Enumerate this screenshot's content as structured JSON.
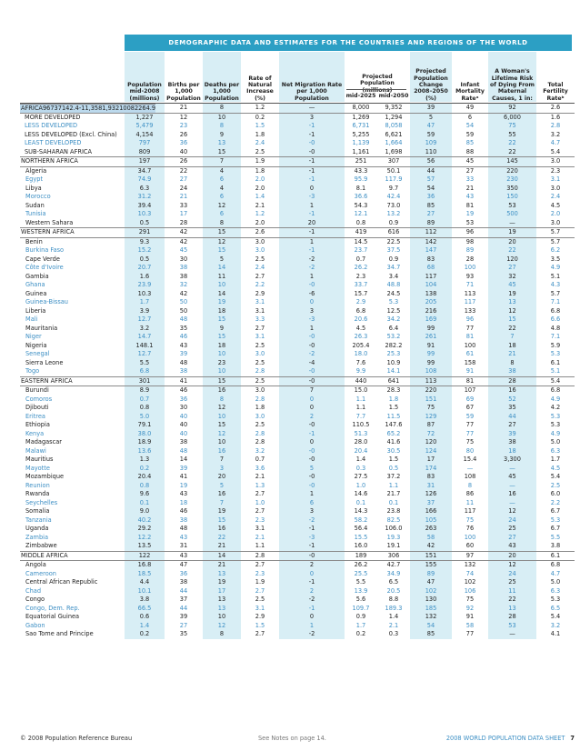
{
  "title": "DEMOGRAPHIC DATA AND ESTIMATES FOR THE COUNTRIES AND REGIONS OF THE WORLD",
  "headers": {
    "population": "Population mid-2008 (millions)",
    "births": "Births per 1,000 Population",
    "deaths": "Deaths per 1,000 Population",
    "natural_increase": "Rate of Natural Increase (%)",
    "net_migration": "Net Migration Rate per 1,000 Population",
    "projected_population": "Projected Population (millions)",
    "mid2025": "mid-2025",
    "mid2050": "mid-2050",
    "projected_change": "Projected Population Change 2008–2050 (%)",
    "infant_mortality": "Infant Mortality Rateᵃ",
    "maternal_risk": "A Woman's Lifetime Risk of Dying From Maternal Causes, 1 in:",
    "fertility": "Total Fertility Rateᵇ"
  },
  "rows": [
    {
      "name": "WORLD",
      "kind": "region",
      "style": "first",
      "v": [
        "6,705",
        "21",
        "8",
        "1.2",
        "—",
        "8,000",
        "9,352",
        "39",
        "49",
        "92",
        "2.6"
      ]
    },
    {
      "name": "MORE DEVELOPED",
      "kind": "sub",
      "style": "",
      "v": [
        "1,227",
        "12",
        "10",
        "0.2",
        "3",
        "1,269",
        "1,294",
        "5",
        "6",
        "6,000",
        "1.6"
      ]
    },
    {
      "name": "LESS DEVELOPED",
      "kind": "sub",
      "style": "blue",
      "v": [
        "5,479",
        "23",
        "8",
        "1.5",
        "-1",
        "6,731",
        "8,058",
        "47",
        "54",
        "75",
        "2.8"
      ]
    },
    {
      "name": "LESS DEVELOPED (Excl. China)",
      "kind": "sub",
      "style": "",
      "v": [
        "4,154",
        "26",
        "9",
        "1.8",
        "-1",
        "5,255",
        "6,621",
        "59",
        "59",
        "55",
        "3.2"
      ]
    },
    {
      "name": "LEAST DEVELOPED",
      "kind": "sub",
      "style": "blue",
      "v": [
        "797",
        "36",
        "13",
        "2.4",
        "-0",
        "1,139",
        "1,664",
        "109",
        "85",
        "22",
        "4.7"
      ]
    },
    {
      "name": "AFRICA",
      "kind": "region",
      "style": "hl",
      "v": [
        "967",
        "37",
        "14",
        "2.4",
        "-1",
        "1,358",
        "1,932",
        "100",
        "82",
        "26",
        "4.9"
      ]
    },
    {
      "name": "SUB-SAHARAN AFRICA",
      "kind": "sub",
      "style": "",
      "v": [
        "809",
        "40",
        "15",
        "2.5",
        "-0",
        "1,161",
        "1,698",
        "110",
        "88",
        "22",
        "5.4"
      ]
    },
    {
      "name": "NORTHERN AFRICA",
      "kind": "region",
      "style": "",
      "v": [
        "197",
        "26",
        "7",
        "1.9",
        "-1",
        "251",
        "307",
        "56",
        "45",
        "145",
        "3.0"
      ]
    },
    {
      "name": "Algeria",
      "kind": "country",
      "style": "",
      "v": [
        "34.7",
        "22",
        "4",
        "1.8",
        "-1",
        "43.3",
        "50.1",
        "44",
        "27",
        "220",
        "2.3"
      ]
    },
    {
      "name": "Egypt",
      "kind": "country",
      "style": "blue",
      "v": [
        "74.9",
        "27",
        "6",
        "2.0",
        "-1",
        "95.9",
        "117.9",
        "57",
        "33",
        "230",
        "3.1"
      ]
    },
    {
      "name": "Libya",
      "kind": "country",
      "style": "",
      "v": [
        "6.3",
        "24",
        "4",
        "2.0",
        "0",
        "8.1",
        "9.7",
        "54",
        "21",
        "350",
        "3.0"
      ]
    },
    {
      "name": "Morocco",
      "kind": "country",
      "style": "blue",
      "v": [
        "31.2",
        "21",
        "6",
        "1.4",
        "-3",
        "36.6",
        "42.4",
        "36",
        "43",
        "150",
        "2.4"
      ]
    },
    {
      "name": "Sudan",
      "kind": "country",
      "style": "",
      "v": [
        "39.4",
        "33",
        "12",
        "2.1",
        "1",
        "54.3",
        "73.0",
        "85",
        "81",
        "53",
        "4.5"
      ]
    },
    {
      "name": "Tunisia",
      "kind": "country",
      "style": "blue",
      "v": [
        "10.3",
        "17",
        "6",
        "1.2",
        "-1",
        "12.1",
        "13.2",
        "27",
        "19",
        "500",
        "2.0"
      ]
    },
    {
      "name": "Western Sahara",
      "kind": "country",
      "style": "",
      "v": [
        "0.5",
        "28",
        "8",
        "2.0",
        "20",
        "0.8",
        "0.9",
        "89",
        "53",
        "—",
        "3.0"
      ]
    },
    {
      "name": "WESTERN AFRICA",
      "kind": "region",
      "style": "",
      "v": [
        "291",
        "42",
        "15",
        "2.6",
        "-1",
        "419",
        "616",
        "112",
        "96",
        "19",
        "5.7"
      ]
    },
    {
      "name": "Benin",
      "kind": "country",
      "style": "",
      "v": [
        "9.3",
        "42",
        "12",
        "3.0",
        "1",
        "14.5",
        "22.5",
        "142",
        "98",
        "20",
        "5.7"
      ]
    },
    {
      "name": "Burkina Faso",
      "kind": "country",
      "style": "blue",
      "v": [
        "15.2",
        "45",
        "15",
        "3.0",
        "-1",
        "23.7",
        "37.5",
        "147",
        "89",
        "22",
        "6.2"
      ]
    },
    {
      "name": "Cape Verde",
      "kind": "country",
      "style": "",
      "v": [
        "0.5",
        "30",
        "5",
        "2.5",
        "-2",
        "0.7",
        "0.9",
        "83",
        "28",
        "120",
        "3.5"
      ]
    },
    {
      "name": "Côte d'Ivoire",
      "kind": "country",
      "style": "blue",
      "v": [
        "20.7",
        "38",
        "14",
        "2.4",
        "-2",
        "26.2",
        "34.7",
        "68",
        "100",
        "27",
        "4.9"
      ]
    },
    {
      "name": "Gambia",
      "kind": "country",
      "style": "",
      "v": [
        "1.6",
        "38",
        "11",
        "2.7",
        "1",
        "2.3",
        "3.4",
        "117",
        "93",
        "32",
        "5.1"
      ]
    },
    {
      "name": "Ghana",
      "kind": "country",
      "style": "blue",
      "v": [
        "23.9",
        "32",
        "10",
        "2.2",
        "-0",
        "33.7",
        "48.8",
        "104",
        "71",
        "45",
        "4.3"
      ]
    },
    {
      "name": "Guinea",
      "kind": "country",
      "style": "",
      "v": [
        "10.3",
        "42",
        "14",
        "2.9",
        "-6",
        "15.7",
        "24.5",
        "138",
        "113",
        "19",
        "5.7"
      ]
    },
    {
      "name": "Guinea-Bissau",
      "kind": "country",
      "style": "blue",
      "v": [
        "1.7",
        "50",
        "19",
        "3.1",
        "0",
        "2.9",
        "5.3",
        "205",
        "117",
        "13",
        "7.1"
      ]
    },
    {
      "name": "Liberia",
      "kind": "country",
      "style": "",
      "v": [
        "3.9",
        "50",
        "18",
        "3.1",
        "3",
        "6.8",
        "12.5",
        "216",
        "133",
        "12",
        "6.8"
      ]
    },
    {
      "name": "Mali",
      "kind": "country",
      "style": "blue",
      "v": [
        "12.7",
        "48",
        "15",
        "3.3",
        "-3",
        "20.6",
        "34.2",
        "169",
        "96",
        "15",
        "6.6"
      ]
    },
    {
      "name": "Mauritania",
      "kind": "country",
      "style": "",
      "v": [
        "3.2",
        "35",
        "9",
        "2.7",
        "1",
        "4.5",
        "6.4",
        "99",
        "77",
        "22",
        "4.8"
      ]
    },
    {
      "name": "Niger",
      "kind": "country",
      "style": "blue",
      "v": [
        "14.7",
        "46",
        "15",
        "3.1",
        "-0",
        "26.3",
        "53.2",
        "261",
        "81",
        "7",
        "7.1"
      ]
    },
    {
      "name": "Nigeria",
      "kind": "country",
      "style": "",
      "v": [
        "148.1",
        "43",
        "18",
        "2.5",
        "-0",
        "205.4",
        "282.2",
        "91",
        "100",
        "18",
        "5.9"
      ]
    },
    {
      "name": "Senegal",
      "kind": "country",
      "style": "blue",
      "v": [
        "12.7",
        "39",
        "10",
        "3.0",
        "-2",
        "18.0",
        "25.3",
        "99",
        "61",
        "21",
        "5.3"
      ]
    },
    {
      "name": "Sierra Leone",
      "kind": "country",
      "style": "",
      "v": [
        "5.5",
        "48",
        "23",
        "2.5",
        "-4",
        "7.6",
        "10.9",
        "99",
        "158",
        "8",
        "6.1"
      ]
    },
    {
      "name": "Togo",
      "kind": "country",
      "style": "blue",
      "v": [
        "6.8",
        "38",
        "10",
        "2.8",
        "-0",
        "9.9",
        "14.1",
        "108",
        "91",
        "38",
        "5.1"
      ]
    },
    {
      "name": "EASTERN AFRICA",
      "kind": "region",
      "style": "",
      "v": [
        "301",
        "41",
        "15",
        "2.5",
        "-0",
        "440",
        "641",
        "113",
        "81",
        "28",
        "5.4"
      ]
    },
    {
      "name": "Burundi",
      "kind": "country",
      "style": "",
      "v": [
        "8.9",
        "46",
        "16",
        "3.0",
        "7",
        "15.0",
        "28.3",
        "220",
        "107",
        "16",
        "6.8"
      ]
    },
    {
      "name": "Comoros",
      "kind": "country",
      "style": "blue",
      "v": [
        "0.7",
        "36",
        "8",
        "2.8",
        "0",
        "1.1",
        "1.8",
        "151",
        "69",
        "52",
        "4.9"
      ]
    },
    {
      "name": "Djibouti",
      "kind": "country",
      "style": "",
      "v": [
        "0.8",
        "30",
        "12",
        "1.8",
        "0",
        "1.1",
        "1.5",
        "75",
        "67",
        "35",
        "4.2"
      ]
    },
    {
      "name": "Eritrea",
      "kind": "country",
      "style": "blue",
      "v": [
        "5.0",
        "40",
        "10",
        "3.0",
        "2",
        "7.7",
        "11.5",
        "129",
        "59",
        "44",
        "5.3"
      ]
    },
    {
      "name": "Ethiopia",
      "kind": "country",
      "style": "",
      "v": [
        "79.1",
        "40",
        "15",
        "2.5",
        "-0",
        "110.5",
        "147.6",
        "87",
        "77",
        "27",
        "5.3"
      ]
    },
    {
      "name": "Kenya",
      "kind": "country",
      "style": "blue",
      "v": [
        "38.0",
        "40",
        "12",
        "2.8",
        "-1",
        "51.3",
        "65.2",
        "72",
        "77",
        "39",
        "4.9"
      ]
    },
    {
      "name": "Madagascar",
      "kind": "country",
      "style": "",
      "v": [
        "18.9",
        "38",
        "10",
        "2.8",
        "0",
        "28.0",
        "41.6",
        "120",
        "75",
        "38",
        "5.0"
      ]
    },
    {
      "name": "Malawi",
      "kind": "country",
      "style": "blue",
      "v": [
        "13.6",
        "48",
        "16",
        "3.2",
        "-0",
        "20.4",
        "30.5",
        "124",
        "80",
        "18",
        "6.3"
      ]
    },
    {
      "name": "Mauritius",
      "kind": "country",
      "style": "",
      "v": [
        "1.3",
        "14",
        "7",
        "0.7",
        "-0",
        "1.4",
        "1.5",
        "17",
        "15.4",
        "3,300",
        "1.7"
      ]
    },
    {
      "name": "Mayotte",
      "kind": "country",
      "style": "blue",
      "v": [
        "0.2",
        "39",
        "3",
        "3.6",
        "5",
        "0.3",
        "0.5",
        "174",
        "—",
        "—",
        "4.5"
      ]
    },
    {
      "name": "Mozambique",
      "kind": "country",
      "style": "",
      "v": [
        "20.4",
        "41",
        "20",
        "2.1",
        "-0",
        "27.5",
        "37.2",
        "83",
        "108",
        "45",
        "5.4"
      ]
    },
    {
      "name": "Reunion",
      "kind": "country",
      "style": "blue",
      "v": [
        "0.8",
        "19",
        "5",
        "1.3",
        "-0",
        "1.0",
        "1.1",
        "31",
        "8",
        "—",
        "2.5"
      ]
    },
    {
      "name": "Rwanda",
      "kind": "country",
      "style": "",
      "v": [
        "9.6",
        "43",
        "16",
        "2.7",
        "1",
        "14.6",
        "21.7",
        "126",
        "86",
        "16",
        "6.0"
      ]
    },
    {
      "name": "Seychelles",
      "kind": "country",
      "style": "blue",
      "v": [
        "0.1",
        "18",
        "7",
        "1.0",
        "6",
        "0.1",
        "0.1",
        "37",
        "11",
        "—",
        "2.2"
      ]
    },
    {
      "name": "Somalia",
      "kind": "country",
      "style": "",
      "v": [
        "9.0",
        "46",
        "19",
        "2.7",
        "3",
        "14.3",
        "23.8",
        "166",
        "117",
        "12",
        "6.7"
      ]
    },
    {
      "name": "Tanzania",
      "kind": "country",
      "style": "blue",
      "v": [
        "40.2",
        "38",
        "15",
        "2.3",
        "-2",
        "58.2",
        "82.5",
        "105",
        "75",
        "24",
        "5.3"
      ]
    },
    {
      "name": "Uganda",
      "kind": "country",
      "style": "",
      "v": [
        "29.2",
        "48",
        "16",
        "3.1",
        "-1",
        "56.4",
        "106.0",
        "263",
        "76",
        "25",
        "6.7"
      ]
    },
    {
      "name": "Zambia",
      "kind": "country",
      "style": "blue",
      "v": [
        "12.2",
        "43",
        "22",
        "2.1",
        "-3",
        "15.5",
        "19.3",
        "58",
        "100",
        "27",
        "5.5"
      ]
    },
    {
      "name": "Zimbabwe",
      "kind": "country",
      "style": "",
      "v": [
        "13.5",
        "31",
        "21",
        "1.1",
        "-1",
        "16.0",
        "19.1",
        "42",
        "60",
        "43",
        "3.8"
      ]
    },
    {
      "name": "MIDDLE AFRICA",
      "kind": "region",
      "style": "",
      "v": [
        "122",
        "43",
        "14",
        "2.8",
        "-0",
        "189",
        "306",
        "151",
        "97",
        "20",
        "6.1"
      ]
    },
    {
      "name": "Angola",
      "kind": "country",
      "style": "",
      "v": [
        "16.8",
        "47",
        "21",
        "2.7",
        "2",
        "26.2",
        "42.7",
        "155",
        "132",
        "12",
        "6.8"
      ]
    },
    {
      "name": "Cameroon",
      "kind": "country",
      "style": "blue",
      "v": [
        "18.5",
        "36",
        "13",
        "2.3",
        "0",
        "25.5",
        "34.9",
        "89",
        "74",
        "24",
        "4.7"
      ]
    },
    {
      "name": "Central African Republic",
      "kind": "country",
      "style": "",
      "v": [
        "4.4",
        "38",
        "19",
        "1.9",
        "-1",
        "5.5",
        "6.5",
        "47",
        "102",
        "25",
        "5.0"
      ]
    },
    {
      "name": "Chad",
      "kind": "country",
      "style": "blue",
      "v": [
        "10.1",
        "44",
        "17",
        "2.7",
        "2",
        "13.9",
        "20.5",
        "102",
        "106",
        "11",
        "6.3"
      ]
    },
    {
      "name": "Congo",
      "kind": "country",
      "style": "",
      "v": [
        "3.8",
        "37",
        "13",
        "2.5",
        "-2",
        "5.6",
        "8.8",
        "130",
        "75",
        "22",
        "5.3"
      ]
    },
    {
      "name": "Congo, Dem. Rep.",
      "kind": "country",
      "style": "blue",
      "v": [
        "66.5",
        "44",
        "13",
        "3.1",
        "-1",
        "109.7",
        "189.3",
        "185",
        "92",
        "13",
        "6.5"
      ]
    },
    {
      "name": "Equatorial Guinea",
      "kind": "country",
      "style": "",
      "v": [
        "0.6",
        "39",
        "10",
        "2.9",
        "0",
        "0.9",
        "1.4",
        "132",
        "91",
        "28",
        "5.4"
      ]
    },
    {
      "name": "Gabon",
      "kind": "country",
      "style": "blue",
      "v": [
        "1.4",
        "27",
        "12",
        "1.5",
        "1",
        "1.7",
        "2.1",
        "54",
        "58",
        "53",
        "3.2"
      ]
    },
    {
      "name": "Sao Tome and Principe",
      "kind": "country",
      "style": "",
      "v": [
        "0.2",
        "35",
        "8",
        "2.7",
        "-2",
        "0.2",
        "0.3",
        "85",
        "77",
        "—",
        "4.1"
      ]
    }
  ],
  "footer": {
    "copyright": "© 2008 Population Reference Bureau",
    "notes": "See Notes on page 14.",
    "sheet": "2008 WORLD POPULATION DATA SHEET",
    "page": "7"
  },
  "colors": {
    "banner": "#2c9fc4",
    "shade": "#d8eef5",
    "highlight": "#bcd9ec",
    "blue_text": "#3d8fc4"
  }
}
